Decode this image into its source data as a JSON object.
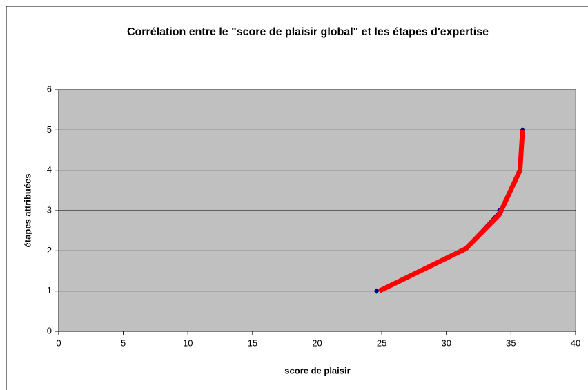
{
  "chart_data": {
    "type": "line",
    "title": "Corrélation entre le \"score de plaisir global\" et les étapes d'expertise",
    "xlabel": "score de plaisir",
    "ylabel": "étapes attribuées",
    "xlim": [
      0,
      40
    ],
    "ylim": [
      0,
      6
    ],
    "xticks": [
      0,
      5,
      10,
      15,
      20,
      25,
      30,
      35,
      40
    ],
    "yticks": [
      0,
      1,
      2,
      3,
      4,
      5,
      6
    ],
    "grid": true,
    "plot_background": "#c0c0c0",
    "series": [
      {
        "color": "#000080",
        "width": 1,
        "markers": true,
        "x": [
          24.6,
          31.2,
          34.1,
          35.7,
          35.9
        ],
        "values": [
          1,
          2,
          3,
          4,
          5
        ]
      },
      {
        "color": "#ff0000",
        "width": 7,
        "markers": false,
        "x": [
          24.8,
          31.5,
          34.1,
          35.7,
          35.9
        ],
        "values": [
          1,
          2.05,
          2.9,
          4,
          5
        ]
      }
    ]
  }
}
